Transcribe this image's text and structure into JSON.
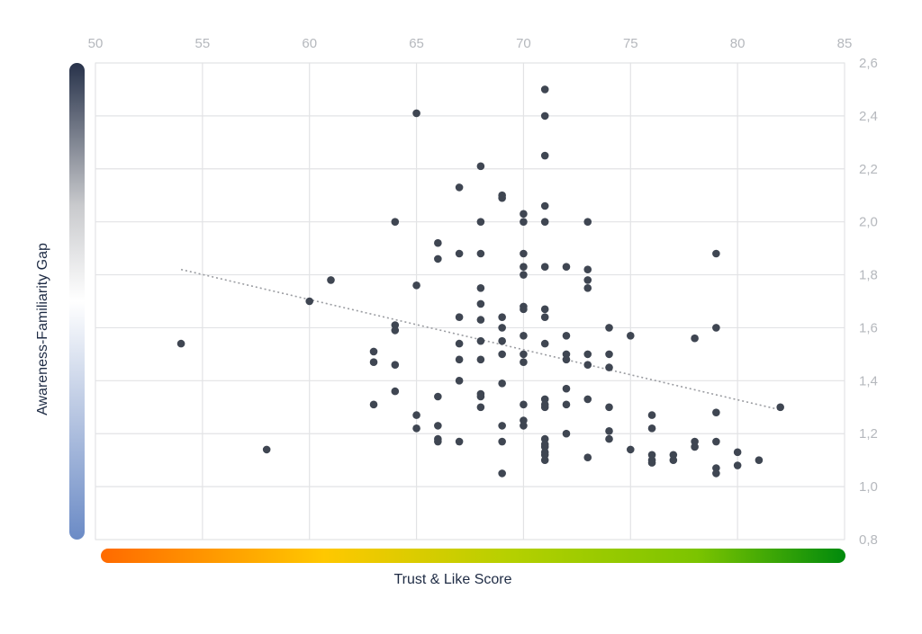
{
  "chart_data": {
    "type": "scatter",
    "xlabel": "Trust & Like Score",
    "ylabel": "Awareness-Familiarity Gap",
    "xlim": [
      50,
      85
    ],
    "ylim": [
      0.8,
      2.6
    ],
    "x_ticks": [
      "50",
      "55",
      "60",
      "65",
      "70",
      "75",
      "80",
      "85"
    ],
    "y_ticks": [
      "0,8",
      "1,0",
      "1,2",
      "1,4",
      "1,6",
      "1,8",
      "2,0",
      "2,2",
      "2,4",
      "2,6"
    ],
    "x_axis_position": "top",
    "y_axis_position": "right",
    "grid": true,
    "trendline": {
      "type": "linear",
      "style": "dotted",
      "from": [
        54,
        1.82
      ],
      "to": [
        82,
        1.29
      ]
    },
    "point_color": "#3f4652",
    "x_gradient_colors": [
      "#ff6a00",
      "#ffc800",
      "#b5d000",
      "#7cc400",
      "#008a0c"
    ],
    "y_gradient_colors": [
      "#27324a",
      "#c9cacd",
      "#ffffff",
      "#c3cfe6",
      "#6b8bc6"
    ],
    "points": [
      [
        54,
        1.54
      ],
      [
        58,
        1.14
      ],
      [
        60,
        1.7
      ],
      [
        61,
        1.78
      ],
      [
        63,
        1.51
      ],
      [
        63,
        1.47
      ],
      [
        63,
        1.31
      ],
      [
        64,
        2.0
      ],
      [
        64,
        1.61
      ],
      [
        64,
        1.59
      ],
      [
        64,
        1.46
      ],
      [
        64,
        1.36
      ],
      [
        65,
        2.41
      ],
      [
        65,
        1.76
      ],
      [
        65,
        1.27
      ],
      [
        65,
        1.22
      ],
      [
        66,
        1.92
      ],
      [
        66,
        1.86
      ],
      [
        66,
        1.34
      ],
      [
        66,
        1.23
      ],
      [
        66,
        1.18
      ],
      [
        66,
        1.17
      ],
      [
        67,
        2.13
      ],
      [
        67,
        1.88
      ],
      [
        67,
        1.64
      ],
      [
        67,
        1.54
      ],
      [
        67,
        1.48
      ],
      [
        67,
        1.4
      ],
      [
        67,
        1.17
      ],
      [
        68,
        2.21
      ],
      [
        68,
        2.0
      ],
      [
        68,
        1.88
      ],
      [
        68,
        1.75
      ],
      [
        68,
        1.69
      ],
      [
        68,
        1.63
      ],
      [
        68,
        1.55
      ],
      [
        68,
        1.48
      ],
      [
        68,
        1.35
      ],
      [
        68,
        1.34
      ],
      [
        68,
        1.3
      ],
      [
        69,
        2.1
      ],
      [
        69,
        2.09
      ],
      [
        69,
        1.64
      ],
      [
        69,
        1.6
      ],
      [
        69,
        1.55
      ],
      [
        69,
        1.5
      ],
      [
        69,
        1.39
      ],
      [
        69,
        1.23
      ],
      [
        69,
        1.17
      ],
      [
        69,
        1.05
      ],
      [
        70,
        2.03
      ],
      [
        70,
        2.0
      ],
      [
        70,
        1.88
      ],
      [
        70,
        1.83
      ],
      [
        70,
        1.8
      ],
      [
        70,
        1.68
      ],
      [
        70,
        1.67
      ],
      [
        70,
        1.57
      ],
      [
        70,
        1.5
      ],
      [
        70,
        1.47
      ],
      [
        70,
        1.31
      ],
      [
        70,
        1.25
      ],
      [
        70,
        1.23
      ],
      [
        71,
        2.5
      ],
      [
        71,
        2.4
      ],
      [
        71,
        2.25
      ],
      [
        71,
        2.06
      ],
      [
        71,
        2.0
      ],
      [
        71,
        1.83
      ],
      [
        71,
        1.67
      ],
      [
        71,
        1.64
      ],
      [
        71,
        1.54
      ],
      [
        71,
        1.33
      ],
      [
        71,
        1.31
      ],
      [
        71,
        1.3
      ],
      [
        71,
        1.18
      ],
      [
        71,
        1.16
      ],
      [
        71,
        1.15
      ],
      [
        71,
        1.13
      ],
      [
        71,
        1.12
      ],
      [
        71,
        1.1
      ],
      [
        72,
        1.83
      ],
      [
        72,
        1.57
      ],
      [
        72,
        1.5
      ],
      [
        72,
        1.48
      ],
      [
        72,
        1.37
      ],
      [
        72,
        1.31
      ],
      [
        72,
        1.2
      ],
      [
        73,
        2.0
      ],
      [
        73,
        1.82
      ],
      [
        73,
        1.78
      ],
      [
        73,
        1.75
      ],
      [
        73,
        1.5
      ],
      [
        73,
        1.46
      ],
      [
        73,
        1.33
      ],
      [
        73,
        1.11
      ],
      [
        74,
        1.6
      ],
      [
        74,
        1.5
      ],
      [
        74,
        1.45
      ],
      [
        74,
        1.3
      ],
      [
        74,
        1.21
      ],
      [
        74,
        1.18
      ],
      [
        75,
        1.57
      ],
      [
        75,
        1.14
      ],
      [
        76,
        1.27
      ],
      [
        76,
        1.22
      ],
      [
        76,
        1.12
      ],
      [
        76,
        1.1
      ],
      [
        76,
        1.09
      ],
      [
        77,
        1.12
      ],
      [
        77,
        1.1
      ],
      [
        78,
        1.56
      ],
      [
        78,
        1.17
      ],
      [
        78,
        1.15
      ],
      [
        79,
        1.88
      ],
      [
        79,
        1.6
      ],
      [
        79,
        1.28
      ],
      [
        79,
        1.17
      ],
      [
        79,
        1.07
      ],
      [
        79,
        1.05
      ],
      [
        80,
        1.13
      ],
      [
        80,
        1.08
      ],
      [
        81,
        1.1
      ],
      [
        82,
        1.3
      ]
    ]
  }
}
